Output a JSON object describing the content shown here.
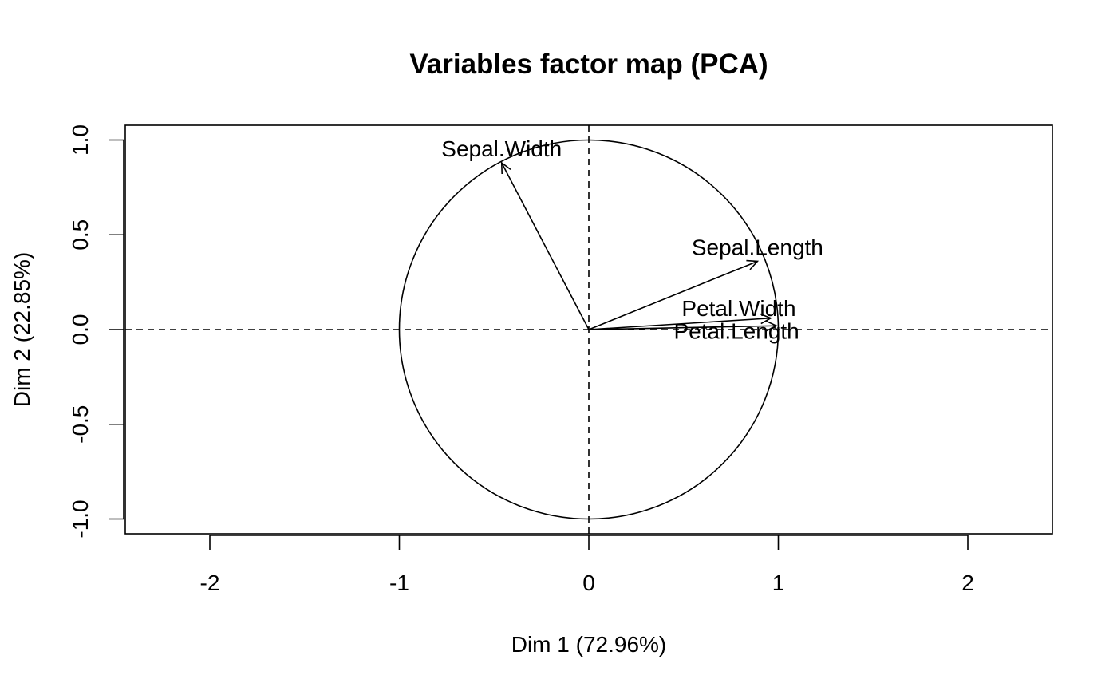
{
  "chart_data": {
    "type": "scatter",
    "title": "Variables factor map (PCA)",
    "xlabel": "Dim 1 (72.96%)",
    "ylabel": "Dim 2 (22.85%)",
    "xlim": [
      -2.45,
      2.45
    ],
    "ylim": [
      -1.08,
      1.08
    ],
    "xticks": [
      -2,
      -1,
      0,
      1,
      2
    ],
    "yticks": [
      -1.0,
      -0.5,
      0.0,
      0.5,
      1.0
    ],
    "xtick_labels": [
      "-2",
      "-1",
      "0",
      "1",
      "2"
    ],
    "ytick_labels": [
      "-1.0",
      "-0.5",
      "0.0",
      "0.5",
      "1.0"
    ],
    "correlation_circle_radius": 1,
    "reference_lines": {
      "x": 0,
      "y": 0,
      "style": "dashed"
    },
    "variables": [
      {
        "name": "Sepal.Length",
        "x": 0.89,
        "y": 0.36
      },
      {
        "name": "Sepal.Width",
        "x": -0.46,
        "y": 0.88
      },
      {
        "name": "Petal.Length",
        "x": 0.99,
        "y": 0.02
      },
      {
        "name": "Petal.Width",
        "x": 0.96,
        "y": 0.06
      }
    ],
    "grid": false,
    "legend": "none"
  }
}
